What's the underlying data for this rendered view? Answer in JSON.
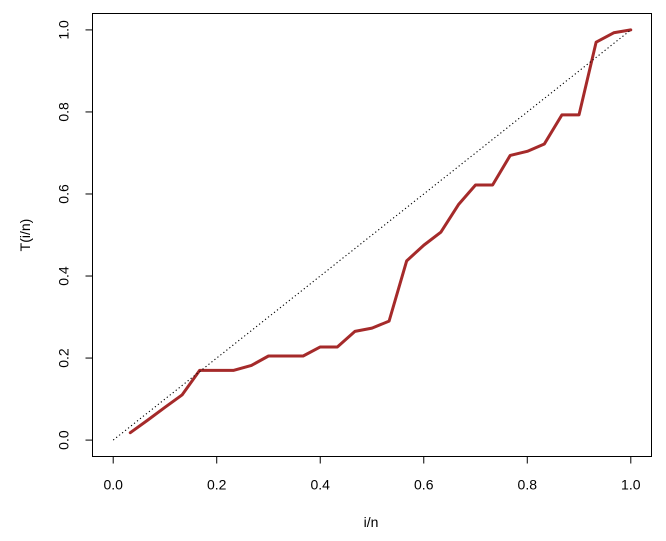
{
  "chart_data": {
    "type": "line",
    "title": "",
    "xlabel": "i/n",
    "ylabel": "T(i/n)",
    "xlim": [
      -0.04,
      1.04
    ],
    "ylim": [
      -0.04,
      1.04
    ],
    "x_ticks": [
      "0.0",
      "0.2",
      "0.4",
      "0.6",
      "0.8",
      "1.0"
    ],
    "y_ticks": [
      "0.0",
      "0.2",
      "0.4",
      "0.6",
      "0.8",
      "1.0"
    ],
    "grid": false,
    "legend": "none",
    "series": [
      {
        "style": "solid",
        "color": "#A52A2A",
        "x": [
          0.033,
          0.067,
          0.1,
          0.133,
          0.167,
          0.2,
          0.233,
          0.267,
          0.3,
          0.333,
          0.367,
          0.4,
          0.433,
          0.467,
          0.5,
          0.533,
          0.567,
          0.6,
          0.633,
          0.667,
          0.7,
          0.733,
          0.767,
          0.8,
          0.833,
          0.867,
          0.9,
          0.933,
          0.967,
          1.0
        ],
        "y": [
          0.018,
          0.049,
          0.08,
          0.11,
          0.17,
          0.17,
          0.17,
          0.182,
          0.205,
          0.205,
          0.205,
          0.227,
          0.227,
          0.265,
          0.273,
          0.29,
          0.437,
          0.475,
          0.507,
          0.574,
          0.622,
          0.622,
          0.694,
          0.704,
          0.722,
          0.793,
          0.793,
          0.97,
          0.993,
          1.0
        ]
      },
      {
        "style": "dotted",
        "color": "#000000",
        "x": [
          0,
          1
        ],
        "y": [
          0,
          1
        ]
      }
    ]
  }
}
